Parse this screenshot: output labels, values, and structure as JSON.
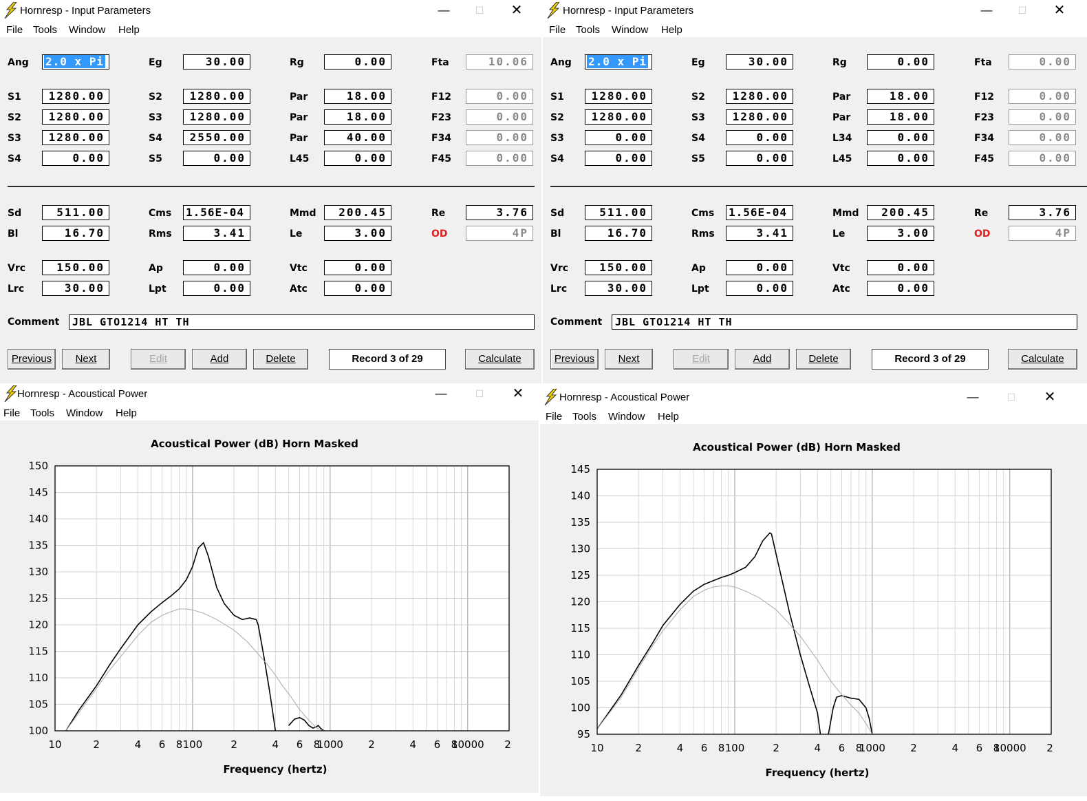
{
  "windows": [
    {
      "title": "Hornresp - Input Parameters",
      "menu": [
        "File",
        "Tools",
        "Window",
        "Help"
      ],
      "rows": [
        [
          [
            "Ang",
            "2.0 x Pi",
            "sel"
          ],
          [
            "Eg",
            "30.00",
            ""
          ],
          [
            "Rg",
            "0.00",
            ""
          ],
          [
            "Fta",
            "10.06",
            "gray"
          ]
        ],
        [
          [
            "S1",
            "1280.00",
            ""
          ],
          [
            "S2",
            "1280.00",
            ""
          ],
          [
            "Par",
            "18.00",
            ""
          ],
          [
            "F12",
            "0.00",
            "gray"
          ]
        ],
        [
          [
            "S2",
            "1280.00",
            ""
          ],
          [
            "S3",
            "1280.00",
            ""
          ],
          [
            "Par",
            "18.00",
            ""
          ],
          [
            "F23",
            "0.00",
            "gray"
          ]
        ],
        [
          [
            "S3",
            "1280.00",
            ""
          ],
          [
            "S4",
            "2550.00",
            ""
          ],
          [
            "Par",
            "40.00",
            ""
          ],
          [
            "F34",
            "0.00",
            "gray"
          ]
        ],
        [
          [
            "S4",
            "0.00",
            ""
          ],
          [
            "S5",
            "0.00",
            ""
          ],
          [
            "L45",
            "0.00",
            ""
          ],
          [
            "F45",
            "0.00",
            "gray"
          ]
        ],
        [
          [
            "Sd",
            "511.00",
            ""
          ],
          [
            "Cms",
            "1.56E-04",
            "left"
          ],
          [
            "Mmd",
            "200.45",
            ""
          ],
          [
            "Re",
            "3.76",
            ""
          ]
        ],
        [
          [
            "Bl",
            "16.70",
            ""
          ],
          [
            "Rms",
            "3.41",
            ""
          ],
          [
            "Le",
            "3.00",
            ""
          ],
          [
            "OD",
            "4P",
            "grayred"
          ]
        ],
        [
          [
            "Vrc",
            "150.00",
            ""
          ],
          [
            "Ap",
            "0.00",
            ""
          ],
          [
            "Vtc",
            "0.00",
            ""
          ]
        ],
        [
          [
            "Lrc",
            "30.00",
            ""
          ],
          [
            "Lpt",
            "0.00",
            ""
          ],
          [
            "Atc",
            "0.00",
            ""
          ]
        ]
      ],
      "comment_label": "Comment",
      "comment": "JBL GTO1214  HT TH",
      "buttons": [
        "Previous",
        "Next",
        "Edit",
        "Add",
        "Delete"
      ],
      "record": "Record 3 of 29",
      "calculate": "Calculate"
    },
    {
      "title": "Hornresp - Input Parameters",
      "menu": [
        "File",
        "Tools",
        "Window",
        "Help"
      ],
      "rows": [
        [
          [
            "Ang",
            "2.0 x Pi",
            "sel"
          ],
          [
            "Eg",
            "30.00",
            ""
          ],
          [
            "Rg",
            "0.00",
            ""
          ],
          [
            "Fta",
            "0.00",
            "gray"
          ]
        ],
        [
          [
            "S1",
            "1280.00",
            ""
          ],
          [
            "S2",
            "1280.00",
            ""
          ],
          [
            "Par",
            "18.00",
            ""
          ],
          [
            "F12",
            "0.00",
            "gray"
          ]
        ],
        [
          [
            "S2",
            "1280.00",
            ""
          ],
          [
            "S3",
            "1280.00",
            ""
          ],
          [
            "Par",
            "18.00",
            ""
          ],
          [
            "F23",
            "0.00",
            "gray"
          ]
        ],
        [
          [
            "S3",
            "0.00",
            ""
          ],
          [
            "S4",
            "0.00",
            ""
          ],
          [
            "L34",
            "0.00",
            ""
          ],
          [
            "F34",
            "0.00",
            "gray"
          ]
        ],
        [
          [
            "S4",
            "0.00",
            ""
          ],
          [
            "S5",
            "0.00",
            ""
          ],
          [
            "L45",
            "0.00",
            ""
          ],
          [
            "F45",
            "0.00",
            "gray"
          ]
        ],
        [
          [
            "Sd",
            "511.00",
            ""
          ],
          [
            "Cms",
            "1.56E-04",
            "left"
          ],
          [
            "Mmd",
            "200.45",
            ""
          ],
          [
            "Re",
            "3.76",
            ""
          ]
        ],
        [
          [
            "Bl",
            "16.70",
            ""
          ],
          [
            "Rms",
            "3.41",
            ""
          ],
          [
            "Le",
            "3.00",
            ""
          ],
          [
            "OD",
            "4P",
            "grayred"
          ]
        ],
        [
          [
            "Vrc",
            "150.00",
            ""
          ],
          [
            "Ap",
            "0.00",
            ""
          ],
          [
            "Vtc",
            "0.00",
            ""
          ]
        ],
        [
          [
            "Lrc",
            "30.00",
            ""
          ],
          [
            "Lpt",
            "0.00",
            ""
          ],
          [
            "Atc",
            "0.00",
            ""
          ]
        ]
      ],
      "comment_label": "Comment",
      "comment": "JBL GTO1214  HT TH",
      "buttons": [
        "Previous",
        "Next",
        "Edit",
        "Add",
        "Delete"
      ],
      "record": "Record 3 of 29",
      "calculate": "Calculate"
    }
  ],
  "chart_windows": [
    {
      "title": "Hornresp - Acoustical Power",
      "menu": [
        "File",
        "Tools",
        "Window",
        "Help"
      ]
    },
    {
      "title": "Hornresp - Acoustical Power",
      "menu": [
        "File",
        "Tools",
        "Window",
        "Help"
      ]
    }
  ],
  "chart_data": [
    {
      "type": "line",
      "title": "Acoustical Power (dB)    Horn    Masked",
      "xlabel": "Frequency (hertz)",
      "ylabel": "",
      "xscale": "log",
      "xlim": [
        10,
        20000
      ],
      "ylim": [
        100,
        150
      ],
      "yticks": [
        100,
        105,
        110,
        115,
        120,
        125,
        130,
        135,
        140,
        145,
        150
      ],
      "xtick_labels": [
        "10",
        "2",
        "4",
        "6",
        "8",
        "100",
        "2",
        "4",
        "6",
        "8",
        "1000",
        "2",
        "4",
        "6",
        "8",
        "10000",
        "2"
      ],
      "grid": true,
      "series": [
        {
          "color": "#000000",
          "x": [
            12,
            15,
            20,
            25,
            30,
            40,
            50,
            60,
            70,
            80,
            90,
            100,
            105,
            110,
            120,
            130,
            150,
            170,
            200,
            230,
            260,
            290,
            300,
            330,
            360,
            380,
            400,
            420,
            460,
            500,
            550,
            600,
            650,
            700,
            750,
            800,
            820,
            850,
            900,
            950,
            1000
          ],
          "y": [
            100,
            104,
            108.5,
            112.5,
            115.5,
            120,
            122.5,
            124.2,
            125.5,
            126.8,
            128.5,
            131,
            132.8,
            134.5,
            135.5,
            133,
            127,
            124,
            121.8,
            121,
            121.3,
            121,
            120,
            114,
            108,
            104,
            100,
            null,
            null,
            101,
            102.2,
            102.5,
            102,
            101,
            100.5,
            100.8,
            101,
            100.5,
            100,
            null,
            null
          ]
        },
        {
          "color": "#b0b0b0",
          "x": [
            12,
            15,
            20,
            25,
            30,
            40,
            50,
            60,
            70,
            80,
            90,
            100,
            120,
            150,
            200,
            250,
            300,
            350,
            400,
            450,
            500,
            600,
            700,
            800,
            900,
            950
          ],
          "y": [
            100,
            103.5,
            108,
            111.5,
            114,
            118,
            120.5,
            121.8,
            122.5,
            123,
            123,
            122.8,
            122.2,
            121,
            119,
            116.8,
            114.5,
            112.5,
            110.5,
            108.5,
            107,
            104,
            102,
            100.5,
            100,
            100
          ]
        }
      ]
    },
    {
      "type": "line",
      "title": "Acoustical Power (dB)    Horn    Masked",
      "xlabel": "Frequency (hertz)",
      "ylabel": "",
      "xscale": "log",
      "xlim": [
        10,
        20000
      ],
      "ylim": [
        95,
        145
      ],
      "yticks": [
        95,
        100,
        105,
        110,
        115,
        120,
        125,
        130,
        135,
        140,
        145
      ],
      "xtick_labels": [
        "10",
        "2",
        "4",
        "6",
        "8",
        "100",
        "2",
        "4",
        "6",
        "8",
        "1000",
        "2",
        "4",
        "6",
        "8",
        "10000",
        "2"
      ],
      "grid": true,
      "series": [
        {
          "color": "#000000",
          "x": [
            10,
            15,
            20,
            25,
            30,
            40,
            50,
            60,
            70,
            80,
            90,
            100,
            120,
            140,
            160,
            180,
            185,
            200,
            250,
            300,
            350,
            400,
            420,
            450,
            470,
            480,
            520,
            550,
            600,
            700,
            800,
            900,
            950,
            1000
          ],
          "y": [
            96,
            102.5,
            108,
            112,
            115.5,
            119.5,
            122,
            123.3,
            124,
            124.6,
            125,
            125.5,
            126.5,
            128.5,
            131.5,
            133,
            132.8,
            129,
            118,
            110,
            104,
            99,
            95,
            null,
            null,
            95,
            100,
            102,
            102.3,
            101.8,
            101.6,
            100,
            98,
            95
          ]
        },
        {
          "color": "#b0b0b0",
          "x": [
            10,
            15,
            20,
            25,
            30,
            40,
            50,
            60,
            70,
            80,
            90,
            100,
            120,
            150,
            200,
            250,
            300,
            400,
            500,
            600,
            700,
            800,
            900,
            1000
          ],
          "y": [
            96,
            102,
            107.5,
            111.5,
            114.5,
            118.5,
            121,
            122.2,
            122.8,
            123,
            123,
            122.8,
            122,
            120.8,
            118.5,
            115.8,
            113.5,
            109,
            105,
            102.5,
            100.5,
            99,
            97,
            95
          ]
        }
      ]
    }
  ]
}
